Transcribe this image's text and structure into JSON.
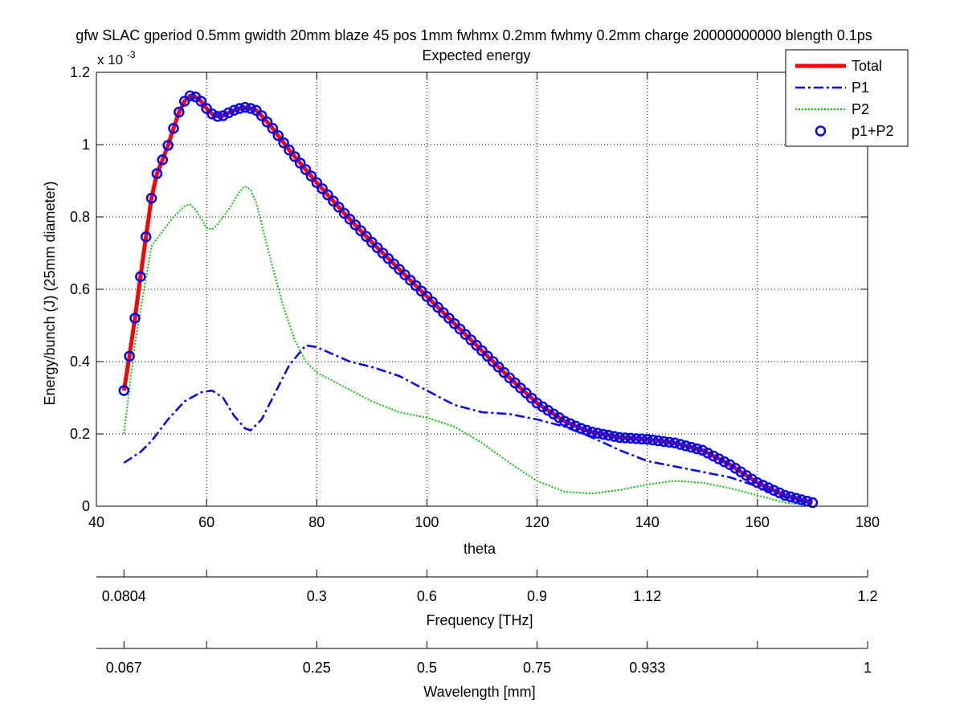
{
  "figure": {
    "title": "gfw SLAC gperiod 0.5mm gwidth 20mm blaze 45 pos 1mm fwhmx 0.2mm fwhmy 0.2mm charge 20000000000 blength 0.1ps",
    "subtitle": "Expected energy"
  },
  "chart_data": {
    "type": "line",
    "title": "gfw SLAC gperiod 0.5mm gwidth 20mm blaze 45 pos 1mm fwhmx 0.2mm fwhmy 0.2mm charge 20000000000 blength 0.1ps",
    "subtitle": "Expected energy",
    "xlabel": "theta",
    "ylabel": "Energy/bunch (J) (25mm diameter)",
    "y_exponent_label": "x 10",
    "y_exponent_power": "-3",
    "xlim": [
      40,
      180
    ],
    "ylim": [
      0,
      1.2
    ],
    "y_scale": 0.001,
    "grid": true,
    "x_ticks": [
      40,
      60,
      80,
      100,
      120,
      140,
      160,
      180
    ],
    "x_tick_labels": [
      "40",
      "60",
      "80",
      "100",
      "120",
      "140",
      "160",
      "180"
    ],
    "y_ticks": [
      0,
      0.2,
      0.4,
      0.6,
      0.8,
      1.0,
      1.2
    ],
    "y_tick_labels": [
      "0",
      "0.2",
      "0.4",
      "0.6",
      "0.8",
      "1",
      "1.2"
    ],
    "legend_position": "top-right",
    "series": [
      {
        "name": "Total",
        "style": "solid-thick",
        "color": "#ff0000",
        "x": [
          45,
          46,
          47,
          48,
          49,
          50,
          51,
          52,
          53,
          54,
          55,
          56,
          57,
          58,
          59,
          60,
          61,
          62,
          63,
          64,
          65,
          66,
          67,
          68,
          69,
          70,
          72,
          75,
          80,
          85,
          90,
          95,
          100,
          105,
          110,
          115,
          120,
          125,
          128,
          130,
          135,
          140,
          145,
          150,
          155,
          160,
          165,
          170
        ],
        "y": [
          0.32,
          0.415,
          0.52,
          0.635,
          0.745,
          0.852,
          0.92,
          0.958,
          0.998,
          1.045,
          1.09,
          1.12,
          1.135,
          1.132,
          1.12,
          1.1,
          1.085,
          1.078,
          1.08,
          1.088,
          1.095,
          1.1,
          1.103,
          1.1,
          1.095,
          1.08,
          1.045,
          0.985,
          0.895,
          0.81,
          0.73,
          0.655,
          0.58,
          0.505,
          0.43,
          0.355,
          0.285,
          0.235,
          0.215,
          0.205,
          0.19,
          0.185,
          0.175,
          0.155,
          0.115,
          0.065,
          0.03,
          0.01
        ]
      },
      {
        "name": "P1",
        "style": "dash-dot",
        "color": "#0000ff",
        "x": [
          45,
          48,
          50,
          53,
          56,
          59,
          61,
          63,
          65,
          67,
          68,
          70,
          72,
          75,
          78,
          80,
          83,
          86,
          90,
          95,
          100,
          105,
          110,
          115,
          120,
          125,
          130,
          135,
          140,
          145,
          150,
          155,
          160,
          165,
          170
        ],
        "y": [
          0.12,
          0.15,
          0.18,
          0.24,
          0.29,
          0.315,
          0.32,
          0.3,
          0.25,
          0.215,
          0.21,
          0.24,
          0.3,
          0.39,
          0.445,
          0.44,
          0.42,
          0.4,
          0.385,
          0.36,
          0.32,
          0.28,
          0.26,
          0.255,
          0.24,
          0.22,
          0.19,
          0.155,
          0.125,
          0.11,
          0.095,
          0.08,
          0.055,
          0.025,
          0.005
        ]
      },
      {
        "name": "P2",
        "style": "dotted",
        "color": "#00cc00",
        "x": [
          45,
          47,
          49,
          50,
          52,
          54,
          56,
          57,
          58,
          60,
          61,
          62,
          64,
          66,
          67,
          68,
          69,
          70,
          72,
          74,
          76,
          78,
          80,
          85,
          90,
          95,
          100,
          105,
          110,
          115,
          120,
          125,
          130,
          135,
          140,
          145,
          150,
          155,
          160,
          165,
          170
        ],
        "y": [
          0.2,
          0.45,
          0.63,
          0.72,
          0.76,
          0.8,
          0.83,
          0.835,
          0.82,
          0.77,
          0.765,
          0.78,
          0.82,
          0.87,
          0.885,
          0.875,
          0.84,
          0.78,
          0.66,
          0.55,
          0.46,
          0.4,
          0.37,
          0.33,
          0.29,
          0.26,
          0.245,
          0.22,
          0.175,
          0.12,
          0.07,
          0.04,
          0.035,
          0.045,
          0.06,
          0.07,
          0.065,
          0.05,
          0.03,
          0.01,
          0.0
        ]
      },
      {
        "name": "p1+P2",
        "style": "circle-markers",
        "color": "#0000ff",
        "x": [
          45,
          46,
          47,
          48,
          49,
          50,
          51,
          52,
          53,
          54,
          55,
          56,
          57,
          58,
          59,
          60,
          61,
          62,
          63,
          64,
          65,
          66,
          67,
          68,
          69,
          70,
          72,
          75,
          80,
          85,
          90,
          95,
          100,
          105,
          110,
          115,
          120,
          125,
          128,
          130,
          135,
          140,
          145,
          150,
          155,
          160,
          165,
          170
        ],
        "y": [
          0.32,
          0.415,
          0.52,
          0.635,
          0.745,
          0.852,
          0.92,
          0.958,
          0.998,
          1.045,
          1.09,
          1.12,
          1.135,
          1.132,
          1.12,
          1.1,
          1.085,
          1.078,
          1.08,
          1.088,
          1.095,
          1.1,
          1.103,
          1.1,
          1.095,
          1.08,
          1.045,
          0.985,
          0.895,
          0.81,
          0.73,
          0.655,
          0.58,
          0.505,
          0.43,
          0.355,
          0.285,
          0.235,
          0.215,
          0.205,
          0.19,
          0.185,
          0.175,
          0.155,
          0.115,
          0.065,
          0.03,
          0.01
        ]
      }
    ],
    "secondary_axes": [
      {
        "label": "Frequency [THz]",
        "tick_positions_theta": [
          45,
          60,
          80,
          100,
          120,
          140,
          160,
          180
        ],
        "tick_labels": [
          "0.0804",
          "0.3",
          "0.6",
          "0.9",
          "1.12",
          "1.2"
        ],
        "labeled_tick_theta": [
          45,
          80,
          100,
          120,
          140,
          180
        ]
      },
      {
        "label": "Wavelength [mm]",
        "tick_positions_theta": [
          45,
          60,
          80,
          100,
          120,
          140,
          160,
          180
        ],
        "tick_labels": [
          "0.067",
          "0.25",
          "0.5",
          "0.75",
          "0.933",
          "1"
        ],
        "labeled_tick_theta": [
          45,
          80,
          100,
          120,
          140,
          180
        ]
      }
    ]
  }
}
